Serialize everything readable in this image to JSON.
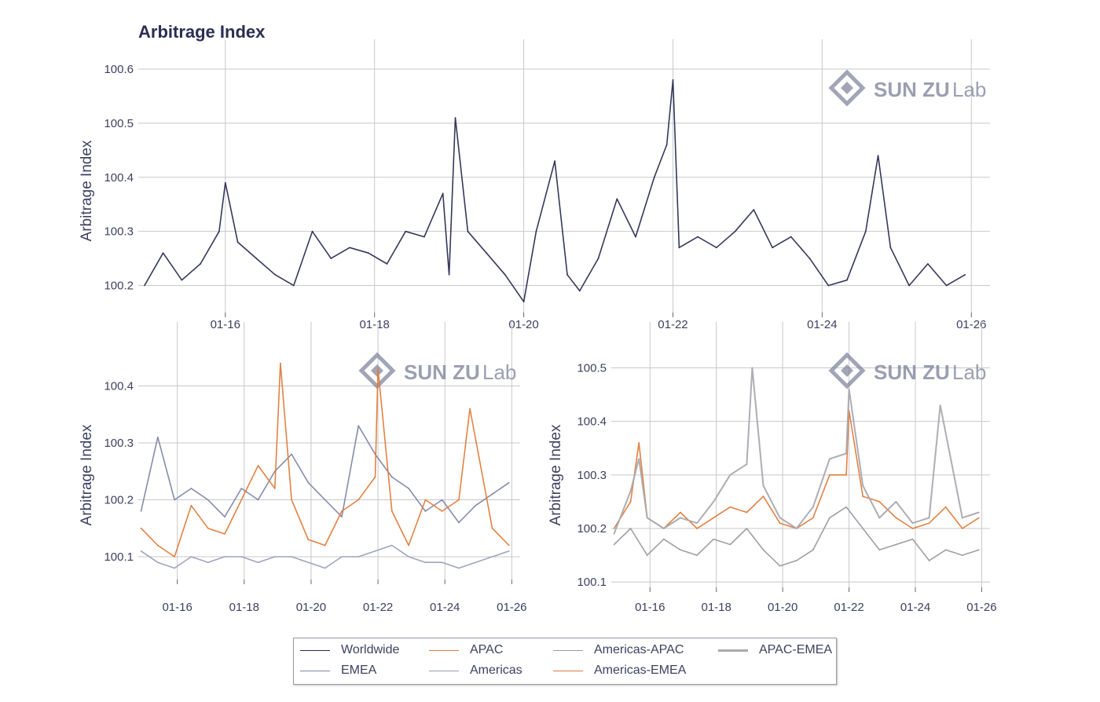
{
  "title": "Arbitrage Index",
  "watermark": {
    "brand": "SUN ZU",
    "suffix": "Lab"
  },
  "colors": {
    "worldwide": "#2b2d52",
    "apac": "#e07b39",
    "emea": "#7f86a8",
    "americas": "#9aa0bb",
    "americas_apac": "#9a9aa0",
    "americas_emea": "#e07b39",
    "apac_emea": "#a9a9b0"
  },
  "legend": [
    {
      "label": "Worldwide",
      "color": "#2b2d52",
      "width": 1.5
    },
    {
      "label": "APAC",
      "color": "#e07b39",
      "width": 1.5
    },
    {
      "label": "Americas-APAC",
      "color": "#9a9aa0",
      "width": 1.5
    },
    {
      "label": "APAC-EMEA",
      "color": "#a9a9b0",
      "width": 3
    },
    {
      "label": "EMEA",
      "color": "#7f86a8",
      "width": 1.5
    },
    {
      "label": "Americas",
      "color": "#9aa0bb",
      "width": 1.5
    },
    {
      "label": "Americas-EMEA",
      "color": "#e07b39",
      "width": 1.5
    }
  ],
  "chart_data": [
    {
      "type": "line",
      "title": "",
      "ylabel": "Arbitrage Index",
      "xlabel": "",
      "xticks": [
        "01-16",
        "01-18",
        "01-20",
        "01-22",
        "01-24",
        "01-26"
      ],
      "yticks": [
        "100.2",
        "100.3",
        "100.4",
        "100.5",
        "100.6"
      ],
      "xlim": [
        "2014-11",
        "2026-04"
      ],
      "ylim": [
        100.15,
        100.6
      ],
      "grid": true,
      "series": [
        {
          "name": "Worldwide",
          "x": [
            "2014-12",
            "2015-03",
            "2015-06",
            "2015-09",
            "2015-12",
            "2016-01",
            "2016-03",
            "2016-06",
            "2016-09",
            "2016-12",
            "2017-03",
            "2017-06",
            "2017-09",
            "2017-12",
            "2018-03",
            "2018-06",
            "2018-09",
            "2018-12",
            "2019-01",
            "2019-02",
            "2019-04",
            "2019-07",
            "2019-10",
            "2020-01",
            "2020-03",
            "2020-06",
            "2020-08",
            "2020-10",
            "2021-01",
            "2021-04",
            "2021-07",
            "2021-10",
            "2021-12",
            "2022-01",
            "2022-02",
            "2022-05",
            "2022-08",
            "2022-11",
            "2023-02",
            "2023-05",
            "2023-08",
            "2023-11",
            "2024-02",
            "2024-05",
            "2024-08",
            "2024-10",
            "2024-12",
            "2025-03",
            "2025-06",
            "2025-09",
            "2025-12"
          ],
          "values": [
            100.2,
            100.26,
            100.21,
            100.24,
            100.3,
            100.39,
            100.28,
            100.25,
            100.22,
            100.2,
            100.3,
            100.25,
            100.27,
            100.26,
            100.24,
            100.3,
            100.29,
            100.37,
            100.22,
            100.51,
            100.3,
            100.26,
            100.22,
            100.17,
            100.3,
            100.43,
            100.22,
            100.19,
            100.25,
            100.36,
            100.29,
            100.4,
            100.46,
            100.58,
            100.27,
            100.29,
            100.27,
            100.3,
            100.34,
            100.27,
            100.29,
            100.25,
            100.2,
            100.21,
            100.3,
            100.44,
            100.27,
            100.2,
            100.24,
            100.2,
            100.22
          ]
        }
      ]
    },
    {
      "type": "line",
      "title": "",
      "ylabel": "Arbitrage Index",
      "xlabel": "",
      "xticks": [
        "01-16",
        "01-18",
        "01-20",
        "01-22",
        "01-24",
        "01-26"
      ],
      "yticks": [
        "100.1",
        "100.2",
        "100.3",
        "100.4"
      ],
      "xlim": [
        "2014-11",
        "2026-04"
      ],
      "ylim": [
        100.06,
        100.46
      ],
      "grid": true,
      "series": [
        {
          "name": "EMEA",
          "x": [
            "2014-12",
            "2015-06",
            "2015-12",
            "2016-06",
            "2016-12",
            "2017-06",
            "2017-12",
            "2018-06",
            "2018-12",
            "2019-06",
            "2019-12",
            "2020-06",
            "2020-12",
            "2021-06",
            "2021-12",
            "2022-06",
            "2022-12",
            "2023-06",
            "2023-12",
            "2024-06",
            "2024-12",
            "2025-06",
            "2025-12"
          ],
          "values": [
            100.18,
            100.31,
            100.2,
            100.22,
            100.2,
            100.17,
            100.22,
            100.2,
            100.25,
            100.28,
            100.23,
            100.2,
            100.17,
            100.33,
            100.28,
            100.24,
            100.22,
            100.18,
            100.2,
            100.16,
            100.19,
            100.21,
            100.23
          ]
        },
        {
          "name": "APAC",
          "x": [
            "2014-12",
            "2015-06",
            "2015-12",
            "2016-06",
            "2016-12",
            "2017-06",
            "2017-12",
            "2018-06",
            "2018-12",
            "2019-02",
            "2019-06",
            "2019-12",
            "2020-06",
            "2020-12",
            "2021-06",
            "2021-12",
            "2022-01",
            "2022-06",
            "2022-12",
            "2023-06",
            "2023-12",
            "2024-06",
            "2024-10",
            "2025-06",
            "2025-12"
          ],
          "values": [
            100.15,
            100.12,
            100.1,
            100.19,
            100.15,
            100.14,
            100.2,
            100.26,
            100.22,
            100.44,
            100.2,
            100.13,
            100.12,
            100.18,
            100.2,
            100.24,
            100.43,
            100.18,
            100.12,
            100.2,
            100.18,
            100.2,
            100.36,
            100.15,
            100.12
          ]
        },
        {
          "name": "Americas",
          "x": [
            "2014-12",
            "2015-06",
            "2015-12",
            "2016-06",
            "2016-12",
            "2017-06",
            "2017-12",
            "2018-06",
            "2018-12",
            "2019-06",
            "2019-12",
            "2020-06",
            "2020-12",
            "2021-06",
            "2021-12",
            "2022-06",
            "2022-12",
            "2023-06",
            "2023-12",
            "2024-06",
            "2024-12",
            "2025-06",
            "2025-12"
          ],
          "values": [
            100.11,
            100.09,
            100.08,
            100.1,
            100.09,
            100.1,
            100.1,
            100.09,
            100.1,
            100.1,
            100.09,
            100.08,
            100.1,
            100.1,
            100.11,
            100.12,
            100.1,
            100.09,
            100.09,
            100.08,
            100.09,
            100.1,
            100.11
          ]
        }
      ]
    },
    {
      "type": "line",
      "title": "",
      "ylabel": "Arbitrage Index",
      "xlabel": "",
      "xticks": [
        "01-16",
        "01-18",
        "01-20",
        "01-22",
        "01-24",
        "01-26"
      ],
      "yticks": [
        "100.1",
        "100.2",
        "100.3",
        "100.4",
        "100.5"
      ],
      "xlim": [
        "2014-11",
        "2026-04"
      ],
      "ylim": [
        100.09,
        100.53
      ],
      "grid": true,
      "series": [
        {
          "name": "Americas-APAC",
          "x": [
            "2014-12",
            "2015-06",
            "2015-12",
            "2016-06",
            "2016-12",
            "2017-06",
            "2017-12",
            "2018-06",
            "2018-12",
            "2019-06",
            "2019-12",
            "2020-06",
            "2020-12",
            "2021-06",
            "2021-12",
            "2022-06",
            "2022-12",
            "2023-06",
            "2023-12",
            "2024-06",
            "2024-12",
            "2025-06",
            "2025-12"
          ],
          "values": [
            100.17,
            100.2,
            100.15,
            100.18,
            100.16,
            100.15,
            100.18,
            100.17,
            100.2,
            100.16,
            100.13,
            100.14,
            100.16,
            100.22,
            100.24,
            100.2,
            100.16,
            100.17,
            100.18,
            100.14,
            100.16,
            100.15,
            100.16
          ]
        },
        {
          "name": "Americas-EMEA",
          "x": [
            "2014-12",
            "2015-06",
            "2015-09",
            "2015-12",
            "2016-06",
            "2016-12",
            "2017-06",
            "2017-12",
            "2018-06",
            "2018-12",
            "2019-06",
            "2019-12",
            "2020-06",
            "2020-12",
            "2021-06",
            "2021-12",
            "2022-01",
            "2022-06",
            "2022-12",
            "2023-06",
            "2023-12",
            "2024-06",
            "2024-12",
            "2025-06",
            "2025-12"
          ],
          "values": [
            100.2,
            100.25,
            100.36,
            100.22,
            100.2,
            100.23,
            100.2,
            100.22,
            100.24,
            100.23,
            100.26,
            100.21,
            100.2,
            100.22,
            100.3,
            100.3,
            100.42,
            100.26,
            100.25,
            100.22,
            100.2,
            100.21,
            100.24,
            100.2,
            100.22
          ]
        },
        {
          "name": "APAC-EMEA",
          "x": [
            "2014-12",
            "2015-06",
            "2015-09",
            "2015-12",
            "2016-06",
            "2016-12",
            "2017-06",
            "2017-12",
            "2018-06",
            "2018-12",
            "2019-02",
            "2019-06",
            "2019-12",
            "2020-06",
            "2020-12",
            "2021-06",
            "2021-12",
            "2022-01",
            "2022-06",
            "2022-12",
            "2023-06",
            "2023-12",
            "2024-06",
            "2024-10",
            "2025-06",
            "2025-12"
          ],
          "values": [
            100.19,
            100.27,
            100.33,
            100.22,
            100.2,
            100.22,
            100.21,
            100.25,
            100.3,
            100.32,
            100.5,
            100.28,
            100.22,
            100.2,
            100.24,
            100.33,
            100.34,
            100.46,
            100.28,
            100.22,
            100.25,
            100.21,
            100.22,
            100.43,
            100.22,
            100.23
          ]
        }
      ]
    }
  ]
}
